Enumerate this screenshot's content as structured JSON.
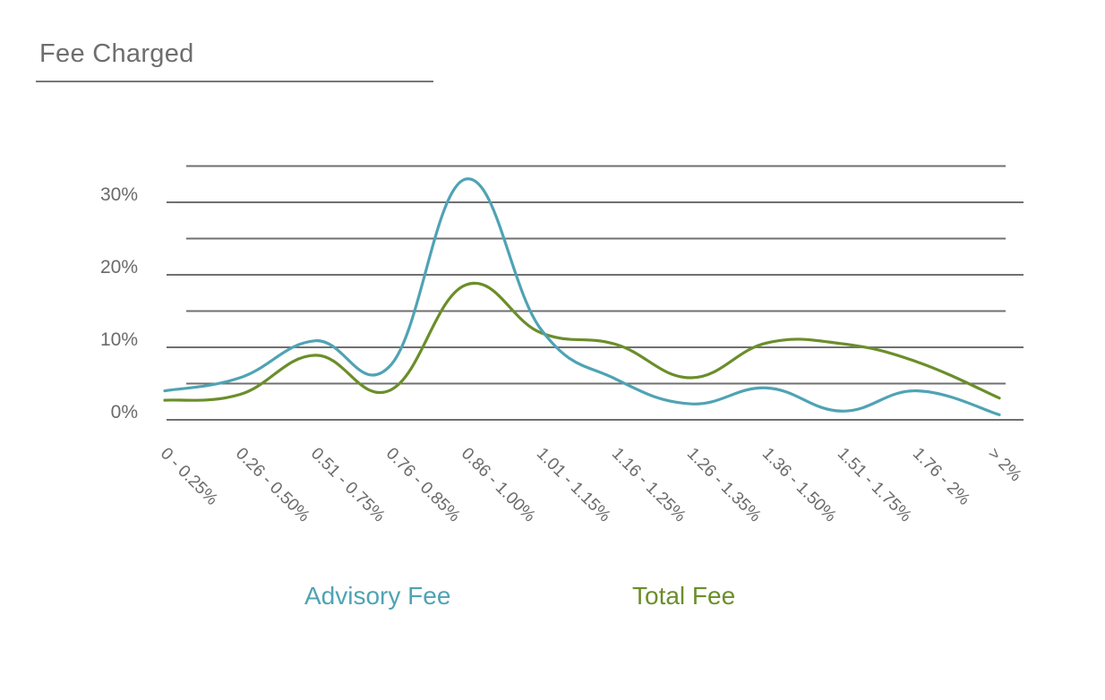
{
  "title": "Fee Charged",
  "colors": {
    "advisory": "#4fa3b4",
    "total": "#6b8e2a",
    "grid": "#707070",
    "text": "#6a6a6a"
  },
  "legend": {
    "advisory": "Advisory Fee",
    "total": "Total Fee"
  },
  "y_ticks": [
    "30%",
    "20%",
    "10%",
    "0%"
  ],
  "chart_data": {
    "type": "line",
    "title": "Fee Charged",
    "xlabel": "",
    "ylabel": "",
    "ylim": [
      0,
      35
    ],
    "grid": true,
    "legend_position": "bottom",
    "categories": [
      "0 - 0.25%",
      "0.26 - 0.50%",
      "0.51 - 0.75%",
      "0.76 - 0.85%",
      "0.86 - 1.00%",
      "1.01 - 1.15%",
      "1.16 - 1.25%",
      "1.26 - 1.35%",
      "1.36 - 1.50%",
      "1.51 - 1.75%",
      "1.76 - 2%",
      "> 2%"
    ],
    "series": [
      {
        "name": "Advisory Fee",
        "color": "#4fa3b4",
        "values": [
          4.0,
          5.8,
          10.9,
          7.5,
          33.2,
          12.5,
          5.6,
          2.2,
          4.4,
          1.2,
          4.0,
          0.7
        ]
      },
      {
        "name": "Total Fee",
        "color": "#6b8e2a",
        "values": [
          2.7,
          3.5,
          8.9,
          4.1,
          18.6,
          12.0,
          10.4,
          5.8,
          10.6,
          10.5,
          8.0,
          3.0
        ]
      }
    ]
  }
}
